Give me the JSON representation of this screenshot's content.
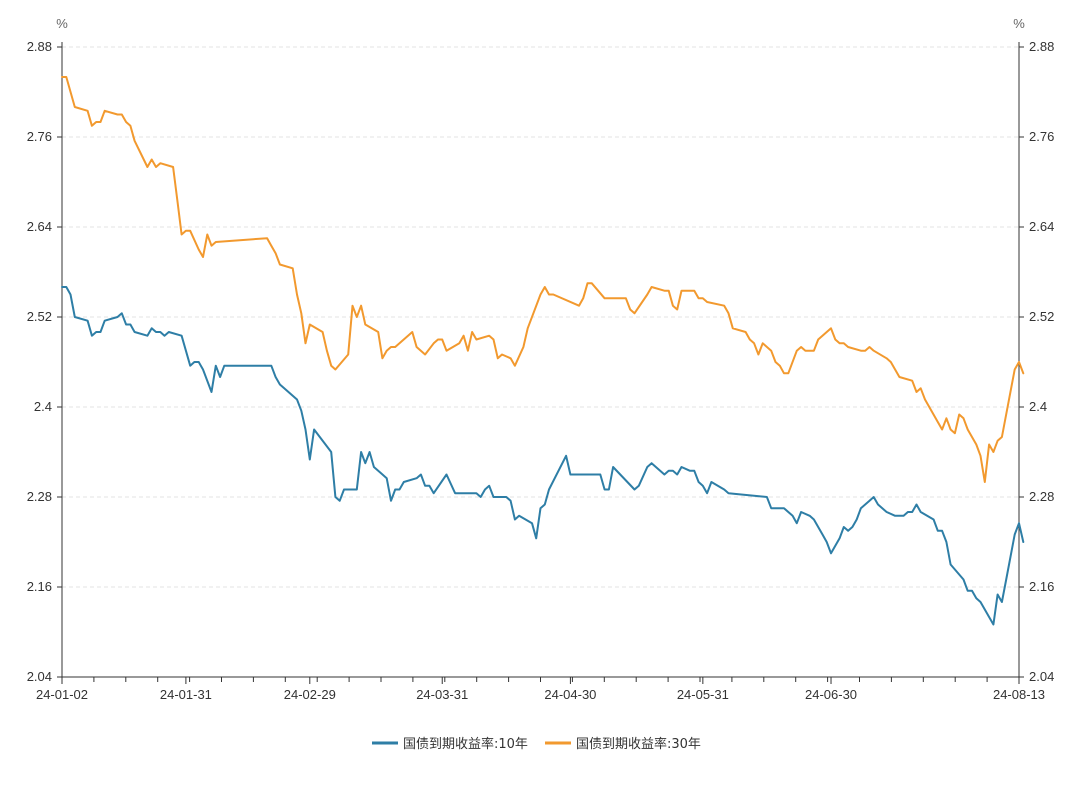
{
  "chart_data": {
    "type": "line",
    "y_unit_left": "%",
    "y_unit_right": "%",
    "ylim": [
      2.04,
      2.88
    ],
    "yticks": [
      "2.88",
      "2.76",
      "2.64",
      "2.52",
      "2.4",
      "2.28",
      "2.16",
      "2.04"
    ],
    "x_range_days": [
      0,
      224
    ],
    "x_tick_labels": [
      {
        "day": 0,
        "label": "24-01-02"
      },
      {
        "day": 29,
        "label": "24-01-31"
      },
      {
        "day": 58,
        "label": "24-02-29"
      },
      {
        "day": 89,
        "label": "24-03-31"
      },
      {
        "day": 119,
        "label": "24-04-30"
      },
      {
        "day": 150,
        "label": "24-05-31"
      },
      {
        "day": 180,
        "label": "24-06-30"
      },
      {
        "day": 224,
        "label": "24-08-13"
      }
    ],
    "colors": {
      "10y": "#2e7ea6",
      "30y": "#f2992e"
    },
    "series": [
      {
        "name": "国债到期收益率:10年",
        "key": "10y",
        "points": [
          [
            0,
            2.56
          ],
          [
            1,
            2.56
          ],
          [
            2,
            2.55
          ],
          [
            3,
            2.52
          ],
          [
            6,
            2.515
          ],
          [
            7,
            2.495
          ],
          [
            8,
            2.5
          ],
          [
            9,
            2.5
          ],
          [
            10,
            2.515
          ],
          [
            13,
            2.52
          ],
          [
            14,
            2.525
          ],
          [
            15,
            2.51
          ],
          [
            16,
            2.51
          ],
          [
            17,
            2.5
          ],
          [
            20,
            2.495
          ],
          [
            21,
            2.505
          ],
          [
            22,
            2.5
          ],
          [
            23,
            2.5
          ],
          [
            24,
            2.495
          ],
          [
            25,
            2.5
          ],
          [
            28,
            2.495
          ],
          [
            29,
            2.475
          ],
          [
            30,
            2.455
          ],
          [
            31,
            2.46
          ],
          [
            32,
            2.46
          ],
          [
            33,
            2.45
          ],
          [
            35,
            2.42
          ],
          [
            36,
            2.455
          ],
          [
            37,
            2.44
          ],
          [
            38,
            2.455
          ],
          [
            49,
            2.455
          ],
          [
            50,
            2.44
          ],
          [
            51,
            2.43
          ],
          [
            52,
            2.425
          ],
          [
            55,
            2.41
          ],
          [
            56,
            2.395
          ],
          [
            57,
            2.37
          ],
          [
            58,
            2.33
          ],
          [
            59,
            2.37
          ],
          [
            63,
            2.34
          ],
          [
            64,
            2.28
          ],
          [
            65,
            2.275
          ],
          [
            66,
            2.29
          ],
          [
            69,
            2.29
          ],
          [
            70,
            2.34
          ],
          [
            71,
            2.325
          ],
          [
            72,
            2.34
          ],
          [
            73,
            2.32
          ],
          [
            76,
            2.305
          ],
          [
            77,
            2.275
          ],
          [
            78,
            2.29
          ],
          [
            79,
            2.29
          ],
          [
            80,
            2.3
          ],
          [
            83,
            2.305
          ],
          [
            84,
            2.31
          ],
          [
            85,
            2.295
          ],
          [
            86,
            2.295
          ],
          [
            87,
            2.285
          ],
          [
            90,
            2.31
          ],
          [
            92,
            2.285
          ],
          [
            97,
            2.285
          ],
          [
            98,
            2.28
          ],
          [
            99,
            2.29
          ],
          [
            100,
            2.295
          ],
          [
            101,
            2.28
          ],
          [
            104,
            2.28
          ],
          [
            105,
            2.275
          ],
          [
            106,
            2.25
          ],
          [
            107,
            2.255
          ],
          [
            110,
            2.245
          ],
          [
            111,
            2.225
          ],
          [
            112,
            2.265
          ],
          [
            113,
            2.27
          ],
          [
            114,
            2.29
          ],
          [
            118,
            2.335
          ],
          [
            119,
            2.31
          ],
          [
            126,
            2.31
          ],
          [
            127,
            2.29
          ],
          [
            128,
            2.29
          ],
          [
            129,
            2.32
          ],
          [
            134,
            2.29
          ],
          [
            135,
            2.295
          ],
          [
            137,
            2.32
          ],
          [
            138,
            2.325
          ],
          [
            141,
            2.31
          ],
          [
            142,
            2.315
          ],
          [
            143,
            2.315
          ],
          [
            144,
            2.31
          ],
          [
            145,
            2.32
          ],
          [
            147,
            2.315
          ],
          [
            148,
            2.315
          ],
          [
            149,
            2.3
          ],
          [
            150,
            2.295
          ],
          [
            151,
            2.285
          ],
          [
            152,
            2.3
          ],
          [
            155,
            2.29
          ],
          [
            156,
            2.285
          ],
          [
            165,
            2.28
          ],
          [
            166,
            2.265
          ],
          [
            169,
            2.265
          ],
          [
            170,
            2.26
          ],
          [
            171,
            2.255
          ],
          [
            172,
            2.245
          ],
          [
            173,
            2.26
          ],
          [
            175,
            2.255
          ],
          [
            176,
            2.25
          ],
          [
            178,
            2.23
          ],
          [
            179,
            2.22
          ],
          [
            180,
            2.205
          ],
          [
            182,
            2.225
          ],
          [
            183,
            2.24
          ],
          [
            184,
            2.235
          ],
          [
            185,
            2.24
          ],
          [
            186,
            2.25
          ],
          [
            187,
            2.265
          ],
          [
            189,
            2.275
          ],
          [
            190,
            2.28
          ],
          [
            191,
            2.27
          ],
          [
            193,
            2.26
          ],
          [
            195,
            2.255
          ],
          [
            197,
            2.255
          ],
          [
            198,
            2.26
          ],
          [
            199,
            2.26
          ],
          [
            200,
            2.27
          ],
          [
            201,
            2.26
          ],
          [
            204,
            2.25
          ],
          [
            205,
            2.235
          ],
          [
            206,
            2.235
          ],
          [
            207,
            2.22
          ],
          [
            208,
            2.19
          ],
          [
            211,
            2.17
          ],
          [
            212,
            2.155
          ],
          [
            213,
            2.155
          ],
          [
            214,
            2.145
          ],
          [
            215,
            2.14
          ],
          [
            216,
            2.13
          ],
          [
            217,
            2.12
          ],
          [
            218,
            2.11
          ],
          [
            219,
            2.15
          ],
          [
            220,
            2.14
          ],
          [
            221,
            2.17
          ],
          [
            223,
            2.23
          ],
          [
            224,
            2.245
          ],
          [
            225,
            2.22
          ]
        ]
      },
      {
        "name": "国债到期收益率:30年",
        "key": "30y",
        "points": [
          [
            0,
            2.84
          ],
          [
            1,
            2.84
          ],
          [
            3,
            2.8
          ],
          [
            6,
            2.795
          ],
          [
            7,
            2.775
          ],
          [
            8,
            2.78
          ],
          [
            9,
            2.78
          ],
          [
            10,
            2.795
          ],
          [
            13,
            2.79
          ],
          [
            14,
            2.79
          ],
          [
            15,
            2.78
          ],
          [
            16,
            2.775
          ],
          [
            17,
            2.755
          ],
          [
            20,
            2.72
          ],
          [
            21,
            2.73
          ],
          [
            22,
            2.72
          ],
          [
            23,
            2.725
          ],
          [
            26,
            2.72
          ],
          [
            27,
            2.675
          ],
          [
            28,
            2.63
          ],
          [
            29,
            2.635
          ],
          [
            30,
            2.635
          ],
          [
            32,
            2.61
          ],
          [
            33,
            2.6
          ],
          [
            34,
            2.63
          ],
          [
            35,
            2.615
          ],
          [
            36,
            2.62
          ],
          [
            48,
            2.625
          ],
          [
            49,
            2.615
          ],
          [
            50,
            2.605
          ],
          [
            51,
            2.59
          ],
          [
            54,
            2.585
          ],
          [
            55,
            2.55
          ],
          [
            56,
            2.525
          ],
          [
            57,
            2.485
          ],
          [
            58,
            2.51
          ],
          [
            61,
            2.5
          ],
          [
            62,
            2.475
          ],
          [
            63,
            2.455
          ],
          [
            64,
            2.45
          ],
          [
            67,
            2.47
          ],
          [
            68,
            2.535
          ],
          [
            69,
            2.52
          ],
          [
            70,
            2.535
          ],
          [
            71,
            2.51
          ],
          [
            74,
            2.5
          ],
          [
            75,
            2.465
          ],
          [
            76,
            2.475
          ],
          [
            77,
            2.48
          ],
          [
            78,
            2.48
          ],
          [
            82,
            2.5
          ],
          [
            83,
            2.48
          ],
          [
            85,
            2.47
          ],
          [
            87,
            2.485
          ],
          [
            88,
            2.49
          ],
          [
            89,
            2.49
          ],
          [
            90,
            2.475
          ],
          [
            93,
            2.485
          ],
          [
            94,
            2.495
          ],
          [
            95,
            2.475
          ],
          [
            96,
            2.5
          ],
          [
            97,
            2.49
          ],
          [
            100,
            2.495
          ],
          [
            101,
            2.49
          ],
          [
            102,
            2.465
          ],
          [
            103,
            2.47
          ],
          [
            105,
            2.465
          ],
          [
            106,
            2.455
          ],
          [
            108,
            2.48
          ],
          [
            109,
            2.505
          ],
          [
            112,
            2.55
          ],
          [
            113,
            2.56
          ],
          [
            114,
            2.55
          ],
          [
            115,
            2.55
          ],
          [
            121,
            2.535
          ],
          [
            122,
            2.545
          ],
          [
            123,
            2.565
          ],
          [
            124,
            2.565
          ],
          [
            127,
            2.545
          ],
          [
            132,
            2.545
          ],
          [
            133,
            2.53
          ],
          [
            134,
            2.525
          ],
          [
            137,
            2.55
          ],
          [
            138,
            2.56
          ],
          [
            141,
            2.555
          ],
          [
            142,
            2.555
          ],
          [
            143,
            2.535
          ],
          [
            144,
            2.53
          ],
          [
            145,
            2.555
          ],
          [
            148,
            2.555
          ],
          [
            149,
            2.545
          ],
          [
            150,
            2.545
          ],
          [
            151,
            2.54
          ],
          [
            155,
            2.535
          ],
          [
            156,
            2.525
          ],
          [
            157,
            2.505
          ],
          [
            160,
            2.5
          ],
          [
            161,
            2.49
          ],
          [
            162,
            2.485
          ],
          [
            163,
            2.47
          ],
          [
            164,
            2.485
          ],
          [
            166,
            2.475
          ],
          [
            167,
            2.46
          ],
          [
            168,
            2.455
          ],
          [
            169,
            2.445
          ],
          [
            170,
            2.445
          ],
          [
            172,
            2.475
          ],
          [
            173,
            2.48
          ],
          [
            174,
            2.475
          ],
          [
            176,
            2.475
          ],
          [
            177,
            2.49
          ],
          [
            180,
            2.505
          ],
          [
            181,
            2.49
          ],
          [
            182,
            2.485
          ],
          [
            183,
            2.485
          ],
          [
            184,
            2.48
          ],
          [
            187,
            2.475
          ],
          [
            188,
            2.475
          ],
          [
            189,
            2.48
          ],
          [
            190,
            2.475
          ],
          [
            193,
            2.465
          ],
          [
            194,
            2.46
          ],
          [
            195,
            2.45
          ],
          [
            196,
            2.44
          ],
          [
            199,
            2.435
          ],
          [
            200,
            2.42
          ],
          [
            201,
            2.425
          ],
          [
            202,
            2.41
          ],
          [
            205,
            2.38
          ],
          [
            206,
            2.37
          ],
          [
            207,
            2.385
          ],
          [
            208,
            2.37
          ],
          [
            209,
            2.365
          ],
          [
            210,
            2.39
          ],
          [
            211,
            2.385
          ],
          [
            212,
            2.37
          ],
          [
            213,
            2.36
          ],
          [
            214,
            2.35
          ],
          [
            215,
            2.335
          ],
          [
            216,
            2.3
          ],
          [
            217,
            2.35
          ],
          [
            218,
            2.34
          ],
          [
            219,
            2.355
          ],
          [
            220,
            2.36
          ],
          [
            223,
            2.45
          ],
          [
            224,
            2.46
          ],
          [
            225,
            2.445
          ]
        ]
      }
    ]
  }
}
